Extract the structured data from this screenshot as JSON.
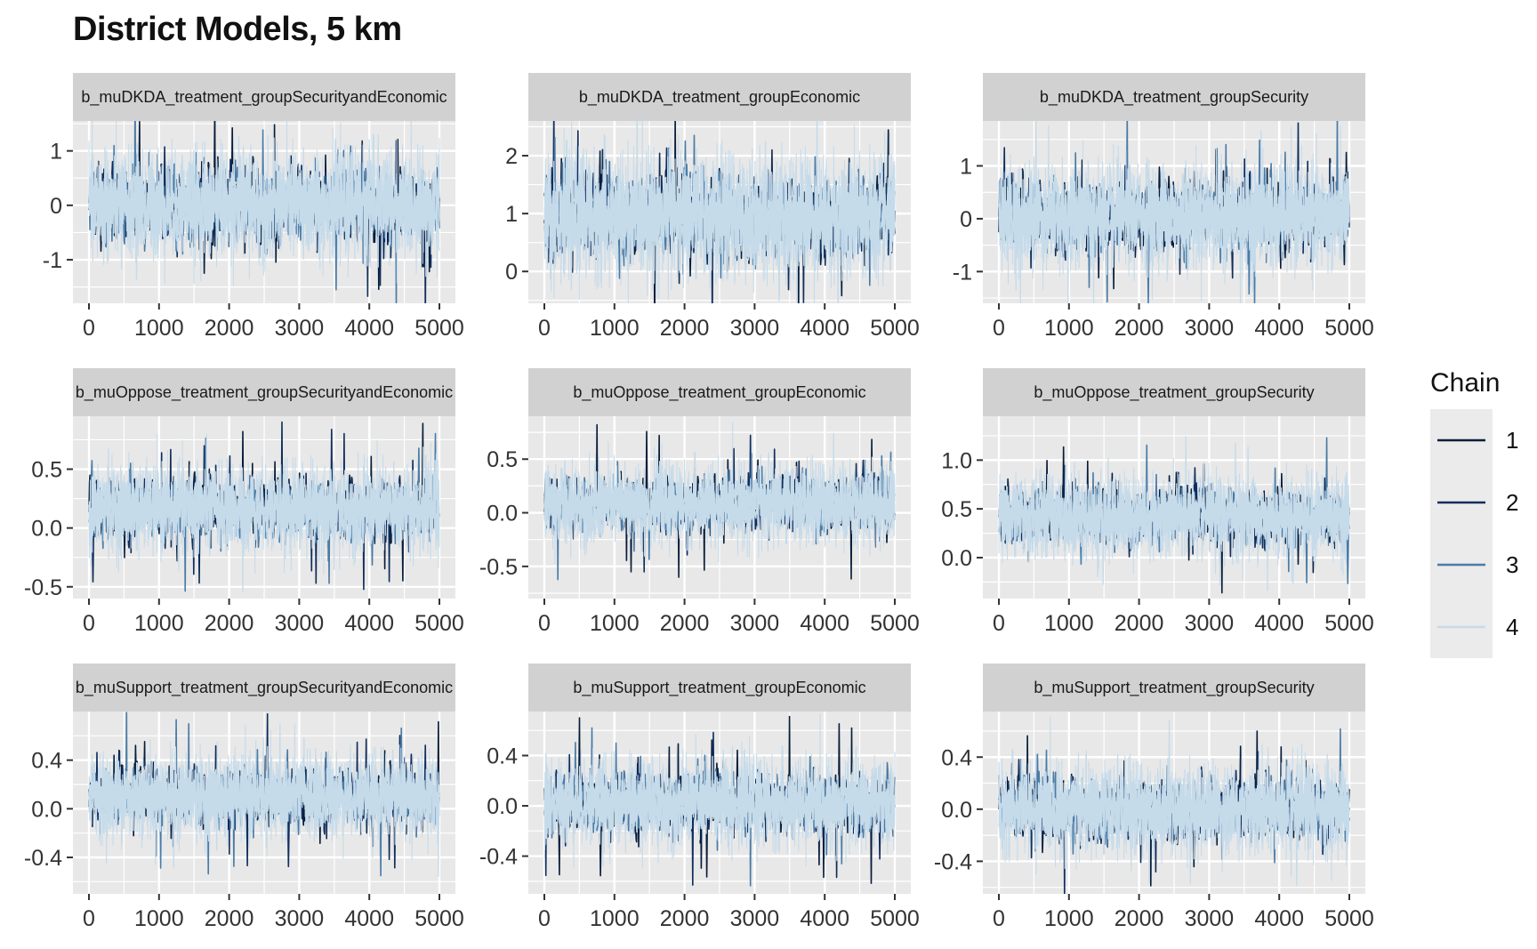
{
  "colors": {
    "panel_bg": "#e8e8e8",
    "strip_bg": "#d1d1d1",
    "grid": "#ffffff",
    "chain_1": "#081d3a",
    "chain_2": "#0f2d5c",
    "chain_3": "#4a7ba6",
    "chain_4": "#c6dbea"
  },
  "chart_data": {
    "type": "line",
    "title": "District Models, 5 km",
    "description_kind": "MCMC trace plots, 4 chains, 9 facets (3x3)",
    "x_range": [
      0,
      5000
    ],
    "x_ticks": [
      0,
      1000,
      2000,
      3000,
      4000,
      5000
    ],
    "legend": {
      "title": "Chain",
      "position": "right",
      "entries": [
        "1",
        "2",
        "3",
        "4"
      ]
    },
    "facets": [
      {
        "label": "b_muDKDA_treatment_groupSecurityandEconomic",
        "center": 0.0,
        "halfwidth": 1.2,
        "ylim": [
          -1.8,
          1.55
        ],
        "yticks": [
          1,
          0,
          -1
        ],
        "ytick_labels": [
          "1",
          "0",
          "-1"
        ]
      },
      {
        "label": "b_muDKDA_treatment_groupEconomic",
        "center": 0.95,
        "halfwidth": 1.3,
        "ylim": [
          -0.55,
          2.6
        ],
        "yticks": [
          2,
          1,
          0
        ],
        "ytick_labels": [
          "2",
          "1",
          "0"
        ]
      },
      {
        "label": "b_muDKDA_treatment_groupSecurity",
        "center": 0.05,
        "halfwidth": 1.2,
        "ylim": [
          -1.6,
          1.85
        ],
        "yticks": [
          1,
          0,
          -1
        ],
        "ytick_labels": [
          "1",
          "0",
          "-1"
        ]
      },
      {
        "label": "b_muOppose_treatment_groupSecurityandEconomic",
        "center": 0.16,
        "halfwidth": 0.45,
        "ylim": [
          -0.6,
          0.95
        ],
        "yticks": [
          0.5,
          0.0,
          -0.5
        ],
        "ytick_labels": [
          "0.5",
          "0.0",
          "-0.5"
        ]
      },
      {
        "label": "b_muOppose_treatment_groupEconomic",
        "center": 0.08,
        "halfwidth": 0.45,
        "ylim": [
          -0.8,
          0.9
        ],
        "yticks": [
          0.5,
          0.0,
          -0.5
        ],
        "ytick_labels": [
          "0.5",
          "0.0",
          "-0.5"
        ]
      },
      {
        "label": "b_muOppose_treatment_groupSecurity",
        "center": 0.42,
        "halfwidth": 0.5,
        "ylim": [
          -0.42,
          1.45
        ],
        "yticks": [
          1.0,
          0.5,
          0.0
        ],
        "ytick_labels": [
          "1.0",
          "0.5",
          "0.0"
        ]
      },
      {
        "label": "b_muSupport_treatment_groupSecurityandEconomic",
        "center": 0.1,
        "halfwidth": 0.42,
        "ylim": [
          -0.7,
          0.8
        ],
        "yticks": [
          0.4,
          0.0,
          -0.4
        ],
        "ytick_labels": [
          "0.4",
          "0.0",
          "-0.4"
        ]
      },
      {
        "label": "b_muSupport_treatment_groupEconomic",
        "center": 0.02,
        "halfwidth": 0.42,
        "ylim": [
          -0.7,
          0.75
        ],
        "yticks": [
          0.4,
          0.0,
          -0.4
        ],
        "ytick_labels": [
          "0.4",
          "0.0",
          "-0.4"
        ]
      },
      {
        "label": "b_muSupport_treatment_groupSecurity",
        "center": 0.0,
        "halfwidth": 0.42,
        "ylim": [
          -0.65,
          0.75
        ],
        "yticks": [
          0.4,
          0.0,
          -0.4
        ],
        "ytick_labels": [
          "0.4",
          "0.0",
          "-0.4"
        ]
      }
    ]
  }
}
